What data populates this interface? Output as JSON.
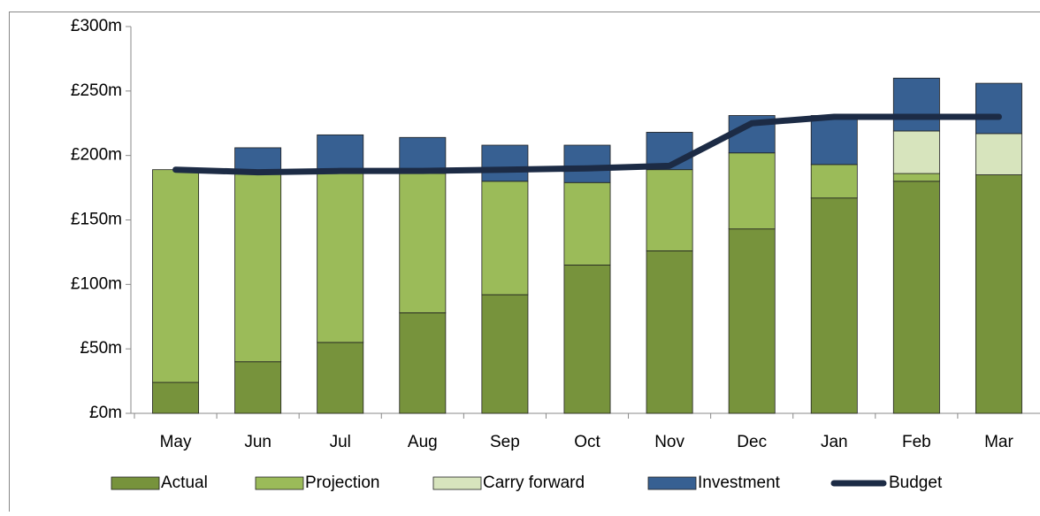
{
  "chart_data": {
    "type": "bar",
    "categories": [
      "May",
      "Jun",
      "Jul",
      "Aug",
      "Sep",
      "Oct",
      "Nov",
      "Dec",
      "Jan",
      "Feb",
      "Mar"
    ],
    "stacked": true,
    "series": [
      {
        "name": "Actual",
        "color": "#77933c",
        "values": [
          24,
          40,
          55,
          78,
          92,
          115,
          126,
          143,
          167,
          180,
          185
        ]
      },
      {
        "name": "Projection",
        "color": "#9bbb59",
        "values": [
          165,
          146,
          131,
          108,
          88,
          64,
          63,
          59,
          26,
          6,
          0
        ]
      },
      {
        "name": "Carry forward",
        "color": "#d7e4bd",
        "values": [
          0,
          0,
          0,
          0,
          0,
          0,
          0,
          0,
          0,
          33,
          32
        ]
      },
      {
        "name": "Investment",
        "color": "#376092",
        "values": [
          0,
          20,
          30,
          28,
          28,
          29,
          29,
          29,
          38,
          41,
          39
        ]
      },
      {
        "name": "Budget",
        "type": "line",
        "color": "#1c2b45",
        "values": [
          189,
          187,
          188,
          188,
          189,
          190,
          192,
          225,
          230,
          230,
          230
        ]
      }
    ],
    "ylim": [
      0,
      300
    ],
    "yticks": [
      {
        "value": 0,
        "label": "£0m"
      },
      {
        "value": 50,
        "label": "£50m"
      },
      {
        "value": 100,
        "label": "£100m"
      },
      {
        "value": 150,
        "label": "£150m"
      },
      {
        "value": 200,
        "label": "£200m"
      },
      {
        "value": 250,
        "label": "£250m"
      },
      {
        "value": 300,
        "label": "£300m"
      }
    ],
    "legend": "bottom"
  }
}
